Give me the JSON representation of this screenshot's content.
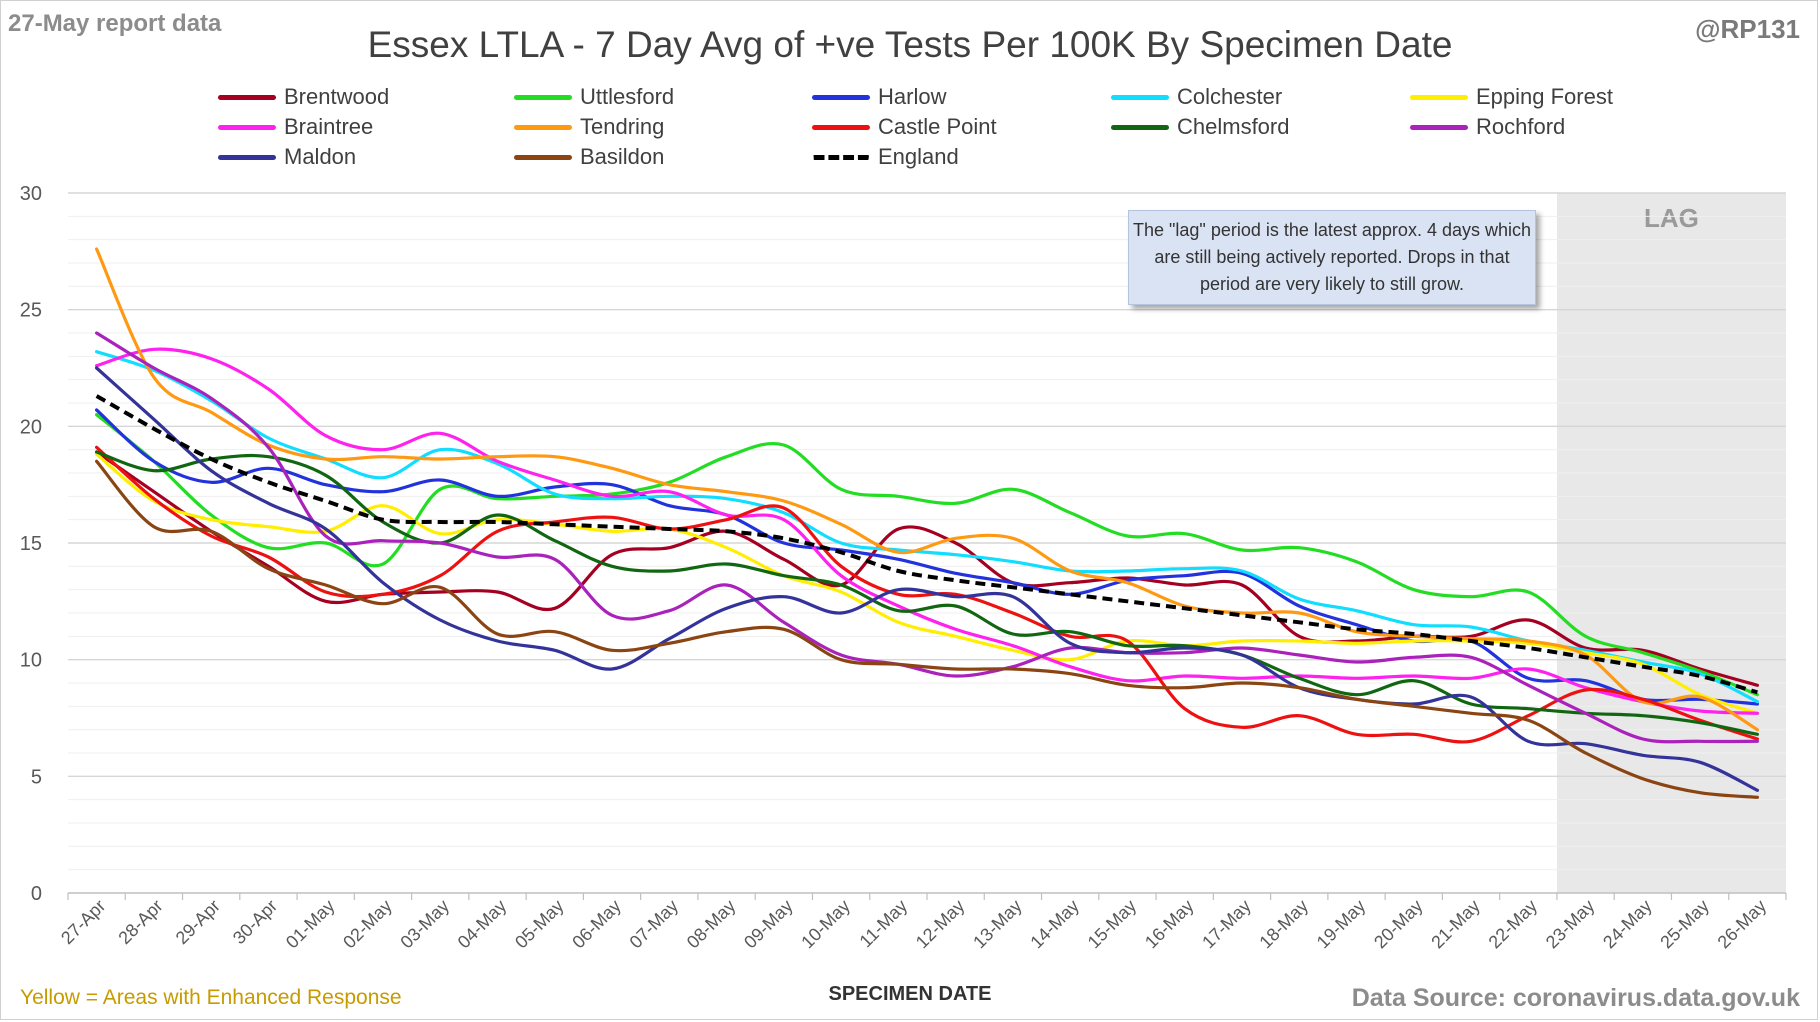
{
  "header": {
    "report_date": "27-May report data",
    "handle": "@RP131",
    "title": "Essex LTLA - 7 Day Avg of +ve Tests Per 100K By Specimen Date"
  },
  "lag": {
    "label": "LAG",
    "note": "The \"lag\" period is the latest approx. 4 days which are still being actively reported. Drops in that period are very likely to still grow.",
    "start_category": "23-May",
    "shade_color": "#e8e8e8"
  },
  "footer": {
    "x_axis_title": "SPECIMEN DATE",
    "left_note": "Yellow = Areas with Enhanced Response",
    "source": "Data Source: coronavirus.data.gov.uk"
  },
  "chart_data": {
    "type": "line",
    "title": "Essex LTLA - 7 Day Avg of +ve Tests Per 100K By Specimen Date",
    "xlabel": "SPECIMEN DATE",
    "ylabel": "",
    "ylim": [
      0,
      30
    ],
    "yticks": [
      0,
      5,
      10,
      15,
      20,
      25,
      30
    ],
    "grid": true,
    "legend_position": "top",
    "categories": [
      "27-Apr",
      "28-Apr",
      "29-Apr",
      "30-Apr",
      "01-May",
      "02-May",
      "03-May",
      "04-May",
      "05-May",
      "06-May",
      "07-May",
      "08-May",
      "09-May",
      "10-May",
      "11-May",
      "12-May",
      "13-May",
      "14-May",
      "15-May",
      "16-May",
      "17-May",
      "18-May",
      "19-May",
      "20-May",
      "21-May",
      "22-May",
      "23-May",
      "24-May",
      "25-May",
      "26-May"
    ],
    "series": [
      {
        "name": "Brentwood",
        "color": "#a50021",
        "values": [
          18.9,
          17.2,
          15.5,
          14.0,
          12.5,
          12.8,
          12.9,
          12.9,
          12.2,
          14.5,
          14.8,
          15.5,
          14.3,
          13.2,
          15.6,
          15.0,
          13.3,
          13.3,
          13.5,
          13.2,
          13.2,
          11.0,
          10.8,
          11.0,
          11.0,
          11.7,
          10.5,
          10.4,
          9.6,
          8.9
        ],
        "dashed": false
      },
      {
        "name": "Uttlesford",
        "color": "#22dd22",
        "values": [
          20.5,
          18.5,
          16.2,
          14.8,
          15.0,
          14.1,
          17.3,
          16.9,
          17.0,
          17.1,
          17.6,
          18.7,
          19.2,
          17.3,
          17.0,
          16.7,
          17.3,
          16.3,
          15.3,
          15.4,
          14.7,
          14.8,
          14.2,
          13.0,
          12.7,
          12.9,
          11.0,
          10.3,
          9.5,
          8.5
        ],
        "dashed": false
      },
      {
        "name": "Harlow",
        "color": "#2233dd",
        "values": [
          20.7,
          18.5,
          17.6,
          18.2,
          17.5,
          17.2,
          17.7,
          17.0,
          17.4,
          17.5,
          16.6,
          16.2,
          15.0,
          14.7,
          14.3,
          13.7,
          13.3,
          12.8,
          13.4,
          13.6,
          13.7,
          12.3,
          11.5,
          10.8,
          10.8,
          9.2,
          9.1,
          8.3,
          8.3,
          8.1
        ],
        "dashed": false
      },
      {
        "name": "Colchester",
        "color": "#11ddff",
        "values": [
          23.2,
          22.4,
          21.1,
          19.5,
          18.6,
          17.8,
          19.0,
          18.4,
          17.1,
          16.9,
          17.0,
          16.9,
          16.3,
          15.0,
          14.7,
          14.5,
          14.2,
          13.8,
          13.8,
          13.9,
          13.8,
          12.6,
          12.1,
          11.5,
          11.4,
          10.8,
          10.4,
          9.9,
          9.4,
          8.2
        ],
        "dashed": false
      },
      {
        "name": "Epping Forest",
        "color": "#ffee00",
        "values": [
          18.8,
          16.8,
          16.0,
          15.7,
          15.5,
          16.6,
          15.4,
          16.0,
          15.8,
          15.5,
          15.6,
          14.8,
          13.6,
          12.9,
          11.6,
          11.0,
          10.4,
          10.0,
          10.8,
          10.6,
          10.8,
          10.8,
          10.7,
          10.8,
          10.8,
          10.7,
          10.3,
          9.8,
          8.5,
          7.7
        ],
        "dashed": false
      },
      {
        "name": "Braintree",
        "color": "#ff22ee",
        "values": [
          22.6,
          23.3,
          22.9,
          21.6,
          19.6,
          19.0,
          19.7,
          18.5,
          17.7,
          17.0,
          17.2,
          16.2,
          16.0,
          13.6,
          12.3,
          11.3,
          10.6,
          9.7,
          9.1,
          9.3,
          9.2,
          9.3,
          9.2,
          9.3,
          9.2,
          9.6,
          8.8,
          8.2,
          7.8,
          7.7
        ],
        "dashed": false
      },
      {
        "name": "Tendring",
        "color": "#ff9911",
        "values": [
          27.6,
          22.1,
          20.6,
          19.2,
          18.6,
          18.7,
          18.6,
          18.7,
          18.7,
          18.2,
          17.5,
          17.2,
          16.8,
          15.8,
          14.6,
          15.2,
          15.2,
          13.8,
          13.3,
          12.3,
          12.0,
          12.0,
          11.2,
          11.0,
          10.9,
          10.8,
          10.2,
          8.2,
          8.4,
          7.0
        ],
        "dashed": false
      },
      {
        "name": "Castle Point",
        "color": "#ee1111",
        "values": [
          19.1,
          16.9,
          15.3,
          14.4,
          12.9,
          12.8,
          13.6,
          15.5,
          15.9,
          16.1,
          15.6,
          16.0,
          16.5,
          14.0,
          12.8,
          12.8,
          12.0,
          11.0,
          10.8,
          7.9,
          7.1,
          7.6,
          6.8,
          6.8,
          6.5,
          7.6,
          8.7,
          8.3,
          7.4,
          6.6
        ],
        "dashed": false
      },
      {
        "name": "Chelmsford",
        "color": "#116611",
        "values": [
          18.9,
          18.1,
          18.6,
          18.7,
          17.9,
          15.9,
          15.0,
          16.2,
          15.1,
          14.0,
          13.8,
          14.1,
          13.6,
          13.2,
          12.1,
          12.3,
          11.1,
          11.2,
          10.6,
          10.6,
          10.2,
          9.2,
          8.5,
          9.1,
          8.1,
          7.9,
          7.7,
          7.6,
          7.3,
          6.8
        ],
        "dashed": false
      },
      {
        "name": "Rochford",
        "color": "#aa22bb",
        "values": [
          24.0,
          22.5,
          21.2,
          19.1,
          15.3,
          15.1,
          15.0,
          14.4,
          14.3,
          11.9,
          12.1,
          13.2,
          11.6,
          10.2,
          9.8,
          9.3,
          9.7,
          10.5,
          10.3,
          10.3,
          10.5,
          10.2,
          9.9,
          10.1,
          10.1,
          8.9,
          7.7,
          6.6,
          6.5,
          6.5
        ],
        "dashed": false
      },
      {
        "name": "Maldon",
        "color": "#333399",
        "values": [
          22.5,
          20.3,
          18.1,
          16.7,
          15.6,
          13.3,
          11.7,
          10.8,
          10.4,
          9.6,
          10.9,
          12.2,
          12.7,
          12.0,
          13.0,
          12.7,
          12.7,
          10.7,
          10.3,
          10.5,
          10.2,
          8.8,
          8.3,
          8.1,
          8.4,
          6.5,
          6.4,
          5.9,
          5.6,
          4.4
        ],
        "dashed": false
      },
      {
        "name": "Basildon",
        "color": "#8b4513",
        "values": [
          18.5,
          15.7,
          15.5,
          13.9,
          13.2,
          12.4,
          13.1,
          11.1,
          11.2,
          10.4,
          10.7,
          11.2,
          11.3,
          10.0,
          9.8,
          9.6,
          9.6,
          9.4,
          8.9,
          8.8,
          9.0,
          8.8,
          8.3,
          8.0,
          7.7,
          7.4,
          6.0,
          4.9,
          4.3,
          4.1
        ],
        "dashed": false
      },
      {
        "name": "England",
        "color": "#000000",
        "values": [
          21.3,
          19.9,
          18.6,
          17.6,
          16.8,
          16.0,
          15.9,
          15.9,
          15.8,
          15.7,
          15.6,
          15.5,
          15.2,
          14.6,
          13.8,
          13.4,
          13.1,
          12.8,
          12.5,
          12.2,
          11.9,
          11.6,
          11.3,
          11.1,
          10.8,
          10.5,
          10.1,
          9.7,
          9.3,
          8.6
        ],
        "dashed": true
      }
    ]
  }
}
